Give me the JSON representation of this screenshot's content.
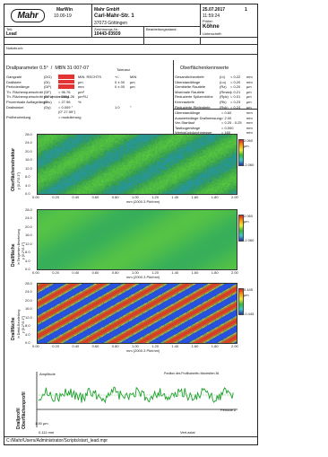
{
  "header": {
    "logo": "Mahr",
    "app": "MarWin",
    "version": "10.00-19",
    "company": "Mahr GmbH",
    "street": "Carl-Mahr-Str. 1",
    "city": "37073 Göttingen",
    "date": "25.07.2017",
    "page": "1",
    "time": "11:59:24",
    "tester_label": "Prüfer:",
    "tester": "Köhne",
    "signature_label": "Unterschrift:",
    "part_label": "Teil:",
    "part": "Lead",
    "drawing_label": "Zeichnungs-Nr.:",
    "drawing": "10443-03939",
    "machining_label": "Bearbeitungsstand:",
    "remarks_label": "Notizbuch:"
  },
  "left_params": {
    "title": "Drallparameter 0.5°",
    "norm": "MBN 31 007-07",
    "tol_label": "Toleranz",
    "rows": [
      {
        "name": "Gangzahl",
        "sym": "(DG)",
        "val": "",
        "unit": "MIN. RECHTS",
        "t1": "+/-",
        "t2": "MIN"
      },
      {
        "name": "Drallsteie",
        "sym": "(DI)",
        "val": "",
        "unit": "µm",
        "t1": "0 ± 00",
        "t2": "µm"
      },
      {
        "name": "Periodenlänge",
        "sym": "(DP)",
        "val": "",
        "unit": "mm",
        "t1": "0 ± 00",
        "t2": "µm"
      },
      {
        "name": "Th. Flächenquerschnitt",
        "sym": "(DF)",
        "val": "= 96.76",
        "unit": "µm²",
        "t1": "",
        "t2": ""
      },
      {
        "name": "Th. Flächenquerschnitt pro Umdrehung",
        "sym": "(DFu)",
        "val": "= 2554.26",
        "unit": "µm²/U",
        "t1": "",
        "t2": ""
      },
      {
        "name": "Prozentuale Auflagelänge",
        "sym": "(Dlu)",
        "val": "= 27.96",
        "unit": "%",
        "t1": "",
        "t2": ""
      },
      {
        "name": "Drallwinkel",
        "sym": "(Dy)",
        "val": "= 0.009 °",
        "unit": "",
        "t1": "1.0",
        "t2": "°"
      },
      {
        "name": "",
        "sym": "",
        "val": "(0° 27.59\")",
        "unit": "",
        "t1": "",
        "t2": ""
      },
      {
        "name": "Prüfbeurteilung",
        "sym": "",
        "val": "= modulierung",
        "unit": "",
        "t1": "",
        "t2": ""
      }
    ]
  },
  "right_params": {
    "title": "Oberflächenkennwerte",
    "rows": [
      {
        "name": "Gesamthöhentiefe",
        "sym": "(Lt)",
        "val": "= 0.22",
        "unit": "mm"
      },
      {
        "name": "Überstandlänge",
        "sym": "(Lo)",
        "val": "= 0.20",
        "unit": "mm"
      },
      {
        "name": "Gemittelte Rautiefe",
        "sym": "(Rz)",
        "val": "= 0.20",
        "unit": "µm"
      },
      {
        "name": "Maximale Rautiefe",
        "sym": "(Rmax)",
        "val": "= 0.21",
        "unit": "µm"
      },
      {
        "name": "Reduzierte Spitzenhöhe",
        "sym": "(Rpk)",
        "val": "= 0.01",
        "unit": "µm"
      },
      {
        "name": "Kernrautiefe",
        "sym": "(Rk)",
        "val": "= 0.23",
        "unit": "µm"
      },
      {
        "name": "Reduzierte Riefentiefe",
        "sym": "(Rvk)",
        "val": "= 0.24",
        "unit": "µm"
      }
    ],
    "rows2": [
      {
        "name": "Überstandlänge",
        "sym": "",
        "val": "= 0.60",
        "unit": "mm"
      },
      {
        "name": "Auswertelänge Drallmessung",
        "sym": "",
        "val": "= 2.00",
        "unit": "mm"
      },
      {
        "name": "Ver-Startlauf",
        "sym": "",
        "val": "= 0.25 - 0.25",
        "unit": "mm"
      },
      {
        "name": "Tastbogenlänge",
        "sym": "",
        "val": "= 0.000",
        "unit": "mm"
      },
      {
        "name": "Werkstückdurchmesser",
        "sym": "",
        "val": "= 160",
        "unit": "mm"
      }
    ]
  },
  "plots": [
    {
      "label": "Oberflächenstruktur",
      "sub": "y [0.2°/0.1°]",
      "yticks": [
        "28.0",
        "24.0",
        "20.0",
        "16.0",
        "12.0",
        "8.0",
        "4.0",
        "0.0"
      ],
      "cbar_top": "2.060",
      "cbar_unit": "µm",
      "cbar_bottom": "-2.060",
      "palette": "texture"
    },
    {
      "label": "Drallfläche",
      "sub": "in Tangenten-Beurteilung",
      "sub2": "y [0.2°/0.1°]",
      "yticks": [
        "28.0",
        "24.0",
        "20.0",
        "16.0",
        "12.0",
        "8.0",
        "4.0",
        "0.0"
      ],
      "cbar_top": "2.060",
      "cbar_unit": "µm",
      "cbar_bottom": "-2.060",
      "palette": "flat"
    },
    {
      "label": "Drallfläche",
      "sub": "in Detail-Beurteilung",
      "sub2": "y [0.2°/0.1°]",
      "yticks": [
        "28.0",
        "24.0",
        "20.0",
        "16.0",
        "12.0",
        "8.0",
        "4.0",
        "0.0"
      ],
      "cbar_top": "0.445",
      "cbar_unit": "µm",
      "cbar_bottom": "-0.445",
      "palette": "stripes"
    }
  ],
  "xticks": [
    "0.00",
    "0.20",
    "0.40",
    "0.60",
    "0.80",
    "1.00",
    "1.20",
    "1.40",
    "1.60",
    "1.80",
    "2.00"
  ],
  "xaxis_label": "mm  (2000.3 Pkt/mm)",
  "profile": {
    "label": "Drallprofil",
    "label2": "Oberflächenprofil",
    "amplitude": "Amplitude",
    "right_note": "Position des Profilschnitts: Maximilien 36",
    "scale1": "1.00 µm",
    "scale2": "0.111 mm",
    "periode": "Periode Z",
    "bottom_right": "Vert.axial"
  },
  "footer": {
    "path": "C:/Mahr/Users/Administrator/Scripts/start_lead.mpr"
  },
  "colors": {
    "accent": "#e33333",
    "texture_green": "#3cb54a",
    "stripe_red": "#d23a2a",
    "stripe_blue": "#2c46a8",
    "profile": "#1a9f2a"
  }
}
